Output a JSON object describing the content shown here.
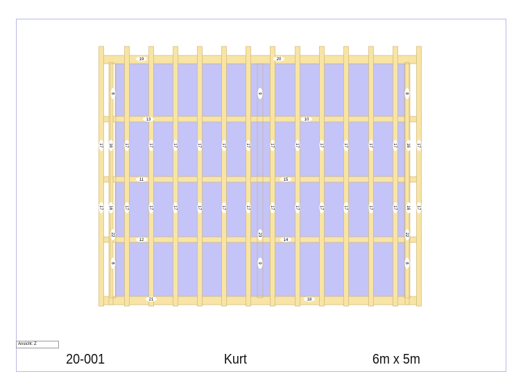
{
  "view_label": "Ansicht: Z",
  "title_block": {
    "number": "20-001",
    "name": "Kurt",
    "size": "6m x 5m"
  },
  "colors": {
    "panel": "#c4c4f8",
    "timber": "#f8e4a4",
    "timber_edge": "#c8b070",
    "frame": "#b8b8e8"
  },
  "beam_labels": [
    "19",
    "20",
    "13",
    "10",
    "11",
    "15",
    "12",
    "14",
    "21",
    "18"
  ],
  "stud_label": "17",
  "side_stud_label": "16",
  "corner_labels": [
    "8",
    "9",
    "8",
    "8",
    "9",
    "8",
    "22",
    "23",
    "22"
  ]
}
